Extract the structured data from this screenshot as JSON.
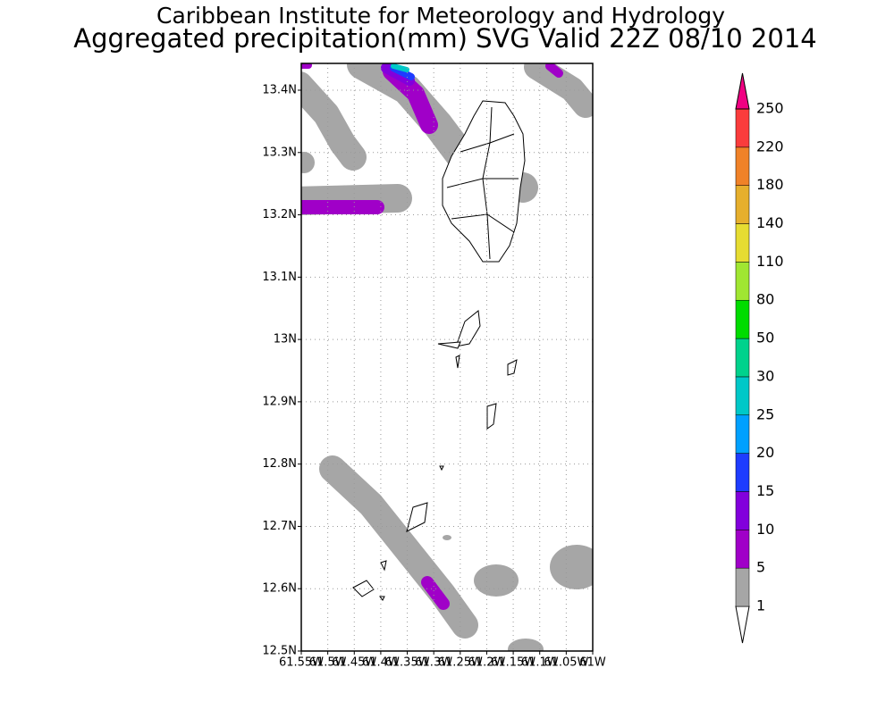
{
  "title": "Caribbean Institute for Meteorology and Hydrology",
  "subtitle": "Aggregated precipitation(mm) SVG Valid 22Z 08/10 2014",
  "map": {
    "lat_labels": [
      "13.4N",
      "13.3N",
      "13.2N",
      "13.1N",
      "13N",
      "12.9N",
      "12.8N",
      "12.7N",
      "12.6N",
      "12.5N"
    ],
    "lon_labels": [
      "61.55W",
      "61.5W",
      "61.45W",
      "61.4W",
      "61.35W",
      "61.3W",
      "61.25W",
      "61.2W",
      "61.15W",
      "61.1W",
      "61.05W",
      "61W"
    ]
  },
  "colorbar": {
    "levels": [
      1,
      5,
      10,
      15,
      20,
      25,
      30,
      50,
      80,
      110,
      140,
      180,
      220,
      250
    ],
    "colors": [
      "#ffffff",
      "#a6a6a6",
      "#a000c8",
      "#8200dc",
      "#1e3cff",
      "#00a0ff",
      "#00c8c8",
      "#00d28c",
      "#00dc00",
      "#a0e632",
      "#e6dc32",
      "#e6af2d",
      "#f08228",
      "#fa3c3c",
      "#f00082"
    ]
  }
}
